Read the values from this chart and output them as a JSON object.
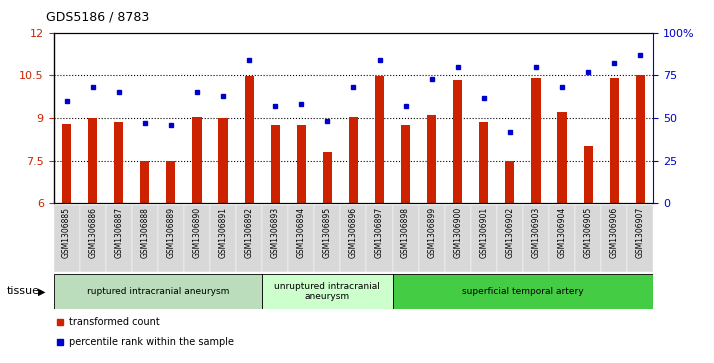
{
  "title": "GDS5186 / 8783",
  "samples": [
    "GSM1306885",
    "GSM1306886",
    "GSM1306887",
    "GSM1306888",
    "GSM1306889",
    "GSM1306890",
    "GSM1306891",
    "GSM1306892",
    "GSM1306893",
    "GSM1306894",
    "GSM1306895",
    "GSM1306896",
    "GSM1306897",
    "GSM1306898",
    "GSM1306899",
    "GSM1306900",
    "GSM1306901",
    "GSM1306902",
    "GSM1306903",
    "GSM1306904",
    "GSM1306905",
    "GSM1306906",
    "GSM1306907"
  ],
  "bar_values": [
    8.8,
    9.0,
    8.85,
    7.5,
    7.5,
    9.05,
    9.0,
    10.47,
    8.75,
    8.75,
    7.8,
    9.05,
    10.47,
    8.75,
    9.1,
    10.35,
    8.85,
    7.5,
    10.4,
    9.2,
    8.0,
    10.4,
    10.5
  ],
  "dot_values_pct": [
    60,
    68,
    65,
    47,
    46,
    65,
    63,
    84,
    57,
    58,
    48,
    68,
    84,
    57,
    73,
    80,
    62,
    42,
    80,
    68,
    77,
    82,
    87
  ],
  "ylim_left": [
    6,
    12
  ],
  "ylim_right": [
    0,
    100
  ],
  "yticks_left": [
    6,
    7.5,
    9,
    10.5,
    12
  ],
  "yticks_right": [
    0,
    25,
    50,
    75,
    100
  ],
  "ytick_labels_right": [
    "0",
    "25",
    "50",
    "75",
    "100%"
  ],
  "bar_color": "#cc2200",
  "dot_color": "#0000cc",
  "groups": [
    {
      "label": "ruptured intracranial aneurysm",
      "start": 0,
      "end": 8,
      "color": "#bbddbb"
    },
    {
      "label": "unruptured intracranial\naneurysm",
      "start": 8,
      "end": 13,
      "color": "#ccffcc"
    },
    {
      "label": "superficial temporal artery",
      "start": 13,
      "end": 23,
      "color": "#44cc44"
    }
  ],
  "xlabel_tissue": "tissue",
  "legend_bar_label": "transformed count",
  "legend_dot_label": "percentile rank within the sample",
  "dotted_lines": [
    7.5,
    9.0,
    10.5
  ],
  "plot_bg": "#f0f0f0",
  "xticklabel_bg": "#d8d8d8"
}
